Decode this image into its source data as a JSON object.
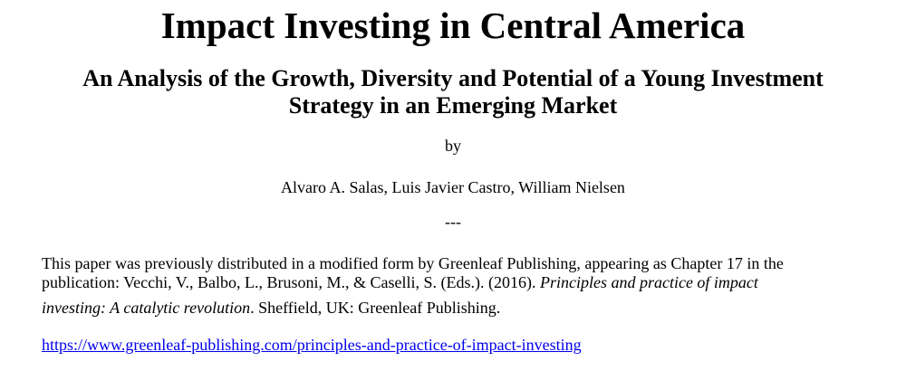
{
  "title": "Impact Investing in Central America",
  "subtitle_line1": "An Analysis of the Growth, Diversity and Potential of a Young Investment",
  "subtitle_line2": "Strategy in an Emerging Market",
  "by": "by",
  "authors": "Alvaro A. Salas, Luis Javier Castro, William Nielsen",
  "separator": "---",
  "note": {
    "line1": "This paper was previously distributed in a modified form by Greenleaf Publishing, appearing as Chapter 17 in the",
    "line2_plain": "publication: Vecchi, V., Balbo, L., Brusoni, M., & Caselli, S. (Eds.). (2016). ",
    "line2_italic": "Principles and practice of impact",
    "line3_italic": "investing: A catalytic revolution",
    "line3_plain": ". Sheffield, UK: Greenleaf Publishing."
  },
  "link": "https://www.greenleaf-publishing.com/principles-and-practice-of-impact-investing",
  "colors": {
    "link": "#0000ee",
    "text": "#000000"
  }
}
